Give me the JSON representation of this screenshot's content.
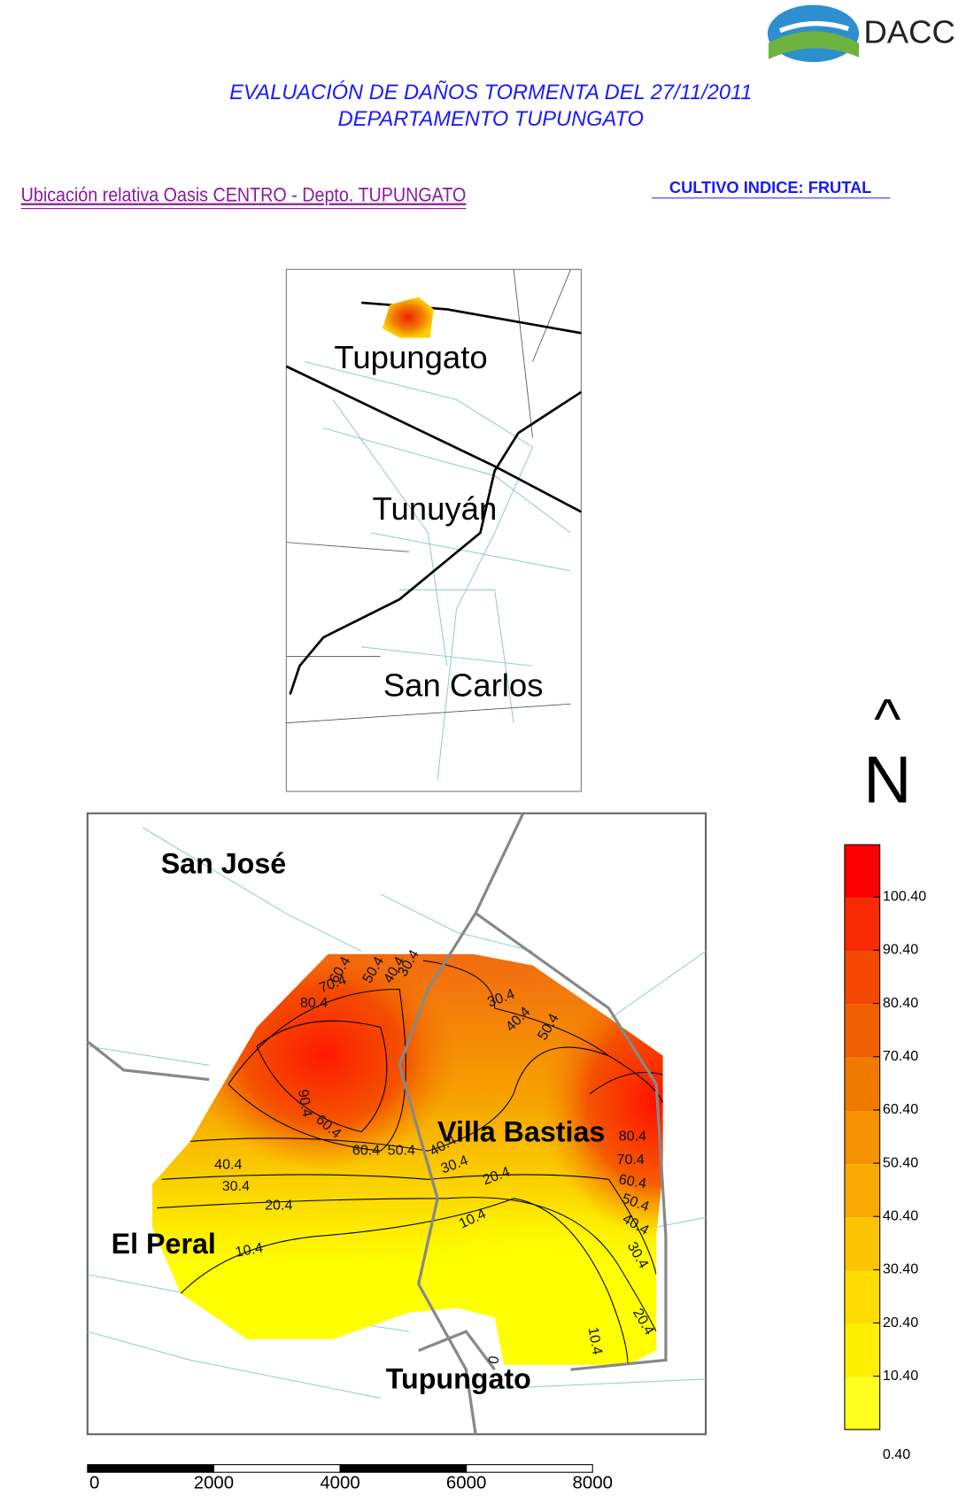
{
  "header": {
    "logo_text": "DACC",
    "title_line1": "EVALUACIÓN DE DAÑOS TORMENTA DEL 27/11/2011",
    "title_line2": "DEPARTAMENTO TUPUNGATO",
    "subtitle": "Ubicación relativa Oasis CENTRO - Depto. TUPUNGATO",
    "crop": "CULTIVO INDICE: FRUTAL"
  },
  "inset_map": {
    "labels": [
      "Tupungato",
      "Tunuyán",
      "San Carlos"
    ]
  },
  "main_map": {
    "labels": [
      "San José",
      "Villa Bastias",
      "El Peral",
      "Tupungato"
    ],
    "contour_labels": [
      "60.4",
      "50.4",
      "40.4",
      "30.4",
      "70.4",
      "80.4",
      "30.4",
      "40.4",
      "50.4",
      "90.4",
      "60.4",
      "60.4",
      "50.4",
      "40.4",
      "80.4",
      "70.4",
      "60.4",
      "50.4",
      "40.4",
      "30.4",
      "40.4",
      "30.4",
      "20.4",
      "30.4",
      "20.4",
      "10.4",
      "10.4",
      "20.4",
      "10.4",
      "0"
    ]
  },
  "north": {
    "arrow": "^",
    "letter": "N"
  },
  "legend": {
    "labels": [
      "100.40",
      "90.40",
      "80.40",
      "70.40",
      "60.40",
      "50.40",
      "40.40",
      "30.40",
      "20.40",
      "10.40",
      "0.40"
    ],
    "colors": [
      "#ff0000",
      "#f82a00",
      "#f44800",
      "#f06000",
      "#f07a00",
      "#f49200",
      "#f8aa00",
      "#fcc400",
      "#ffdc00",
      "#ffee00",
      "#ffff20"
    ]
  },
  "scale_bar": {
    "ticks": [
      "0",
      "2000",
      "4000",
      "6000",
      "8000"
    ]
  }
}
